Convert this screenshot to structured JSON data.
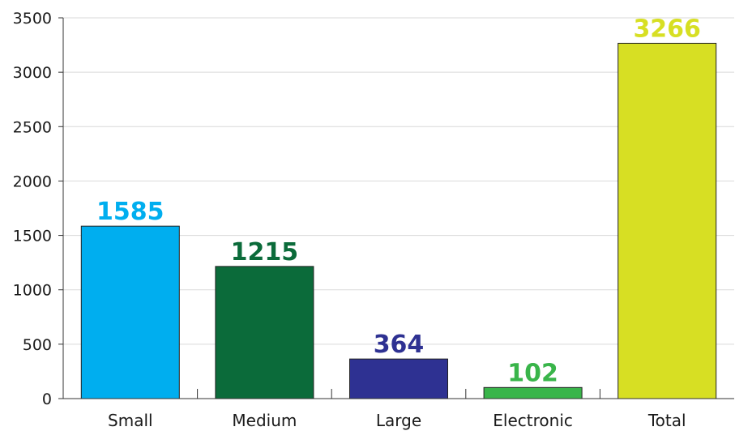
{
  "chart_data": {
    "type": "bar",
    "categories": [
      "Small",
      "Medium",
      "Large",
      "Electronic",
      "Total"
    ],
    "values": [
      1585,
      1215,
      364,
      102,
      3266
    ],
    "data_labels": [
      "1585",
      "1215",
      "364",
      "102",
      "3266"
    ],
    "colors": [
      "#00aeef",
      "#0b6b3a",
      "#2e3192",
      "#39b54a",
      "#d7df23"
    ],
    "yticks": [
      0,
      500,
      1000,
      1500,
      2000,
      2500,
      3000,
      3500
    ],
    "ylim": [
      0,
      3500
    ],
    "grid": true,
    "legend": "none"
  }
}
